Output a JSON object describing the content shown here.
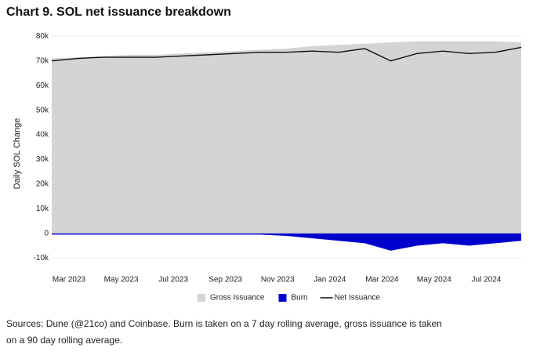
{
  "chart_data": {
    "type": "area",
    "title": "Chart 9. SOL net issuance breakdown",
    "y_label": "Daily SOL Change",
    "source_lines": [
      "Sources: Dune (@21co) and Coinbase. Burn is taken on a 7 day rolling average, gross issuance is taken",
      "on a 90 day rolling average."
    ],
    "x": [
      "Mar 2023",
      null,
      "May 2023",
      null,
      "Jul 2023",
      null,
      "Sep 2023",
      null,
      "Nov 2023",
      null,
      "Jan 2024",
      null,
      "Mar 2024",
      null,
      "May 2024",
      null,
      "Jul 2024",
      null,
      null
    ],
    "series": [
      {
        "name": "Gross Issuance",
        "color": "#d4d4d4",
        "kind": "area",
        "values": [
          71,
          71.5,
          72,
          72.5,
          72.5,
          73,
          73.5,
          74,
          74.5,
          75,
          76,
          76.5,
          77,
          77.5,
          78,
          78,
          78,
          78,
          77.5
        ]
      },
      {
        "name": "Burn",
        "color": "#0000cc",
        "kind": "area",
        "values": [
          -0.5,
          -0.5,
          -0.5,
          -0.5,
          -0.5,
          -0.5,
          -0.5,
          -0.5,
          -0.5,
          -1,
          -2,
          -3,
          -4,
          -7,
          -5,
          -4,
          -5,
          -4,
          -3
        ]
      },
      {
        "name": "Net Issuance",
        "color": "#111111",
        "kind": "line",
        "values": [
          70,
          71,
          71.5,
          71.5,
          71.5,
          72,
          72.5,
          73,
          73.5,
          73.5,
          74,
          73.5,
          75,
          70,
          73,
          74,
          73,
          73.5,
          75.5
        ]
      }
    ],
    "ylim": [
      -15,
      82
    ],
    "yticks": [
      {
        "value": -10,
        "label": "-10k"
      },
      0,
      {
        "value": 10,
        "label": "10k"
      },
      {
        "value": 20,
        "label": "20k"
      },
      {
        "value": 30,
        "label": "30k"
      },
      {
        "value": 40,
        "label": "40k"
      },
      {
        "value": 50,
        "label": "50k"
      },
      {
        "value": 60,
        "label": "60k"
      },
      {
        "value": 70,
        "label": "70k"
      },
      {
        "value": 80,
        "label": "80k"
      }
    ],
    "legend": "bottom"
  }
}
